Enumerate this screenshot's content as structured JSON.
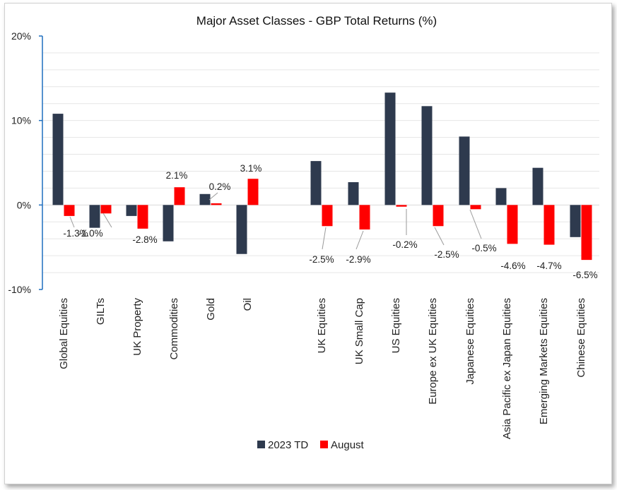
{
  "chart_data": {
    "type": "bar",
    "title": "Major Asset Classes - GBP Total Returns (%)",
    "xlabel": "",
    "ylabel": "",
    "ylim": [
      -10,
      20
    ],
    "yticks": [
      20,
      10,
      0,
      -10
    ],
    "ytick_labels": [
      "20%",
      "10%",
      "0%",
      "-10%"
    ],
    "grid": true,
    "legend_position": "bottom-center",
    "categories": [
      "Global Equities",
      "GILTs",
      "UK Property",
      "Commodities",
      "Gold",
      "Oil",
      "UK Equities",
      "UK Small Cap",
      "US Equities",
      "Europe ex UK Equities",
      "Japanese Equities",
      "Asia Pacific ex Japan Equities",
      "Emerging Markets Equities",
      "Chinese Equities"
    ],
    "series": [
      {
        "name": "2023 TD",
        "color": "#2e3a4e",
        "values": [
          10.8,
          -2.7,
          -1.3,
          -4.3,
          1.3,
          -5.8,
          5.2,
          2.7,
          13.3,
          11.7,
          8.1,
          2.0,
          4.4,
          -3.8
        ]
      },
      {
        "name": "August",
        "color": "#ff0000",
        "values": [
          -1.3,
          -1.0,
          -2.8,
          2.1,
          0.2,
          3.1,
          -2.5,
          -2.9,
          -0.2,
          -2.5,
          -0.5,
          -4.6,
          -4.7,
          -6.5
        ],
        "data_labels": [
          "-1.3%",
          "-1.0%",
          "-2.8%",
          "2.1%",
          "0.2%",
          "3.1%",
          "-2.5%",
          "-2.9%",
          "-0.2%",
          "-2.5%",
          "-0.5%",
          "-4.6%",
          "-4.7%",
          "-6.5%"
        ]
      }
    ]
  }
}
